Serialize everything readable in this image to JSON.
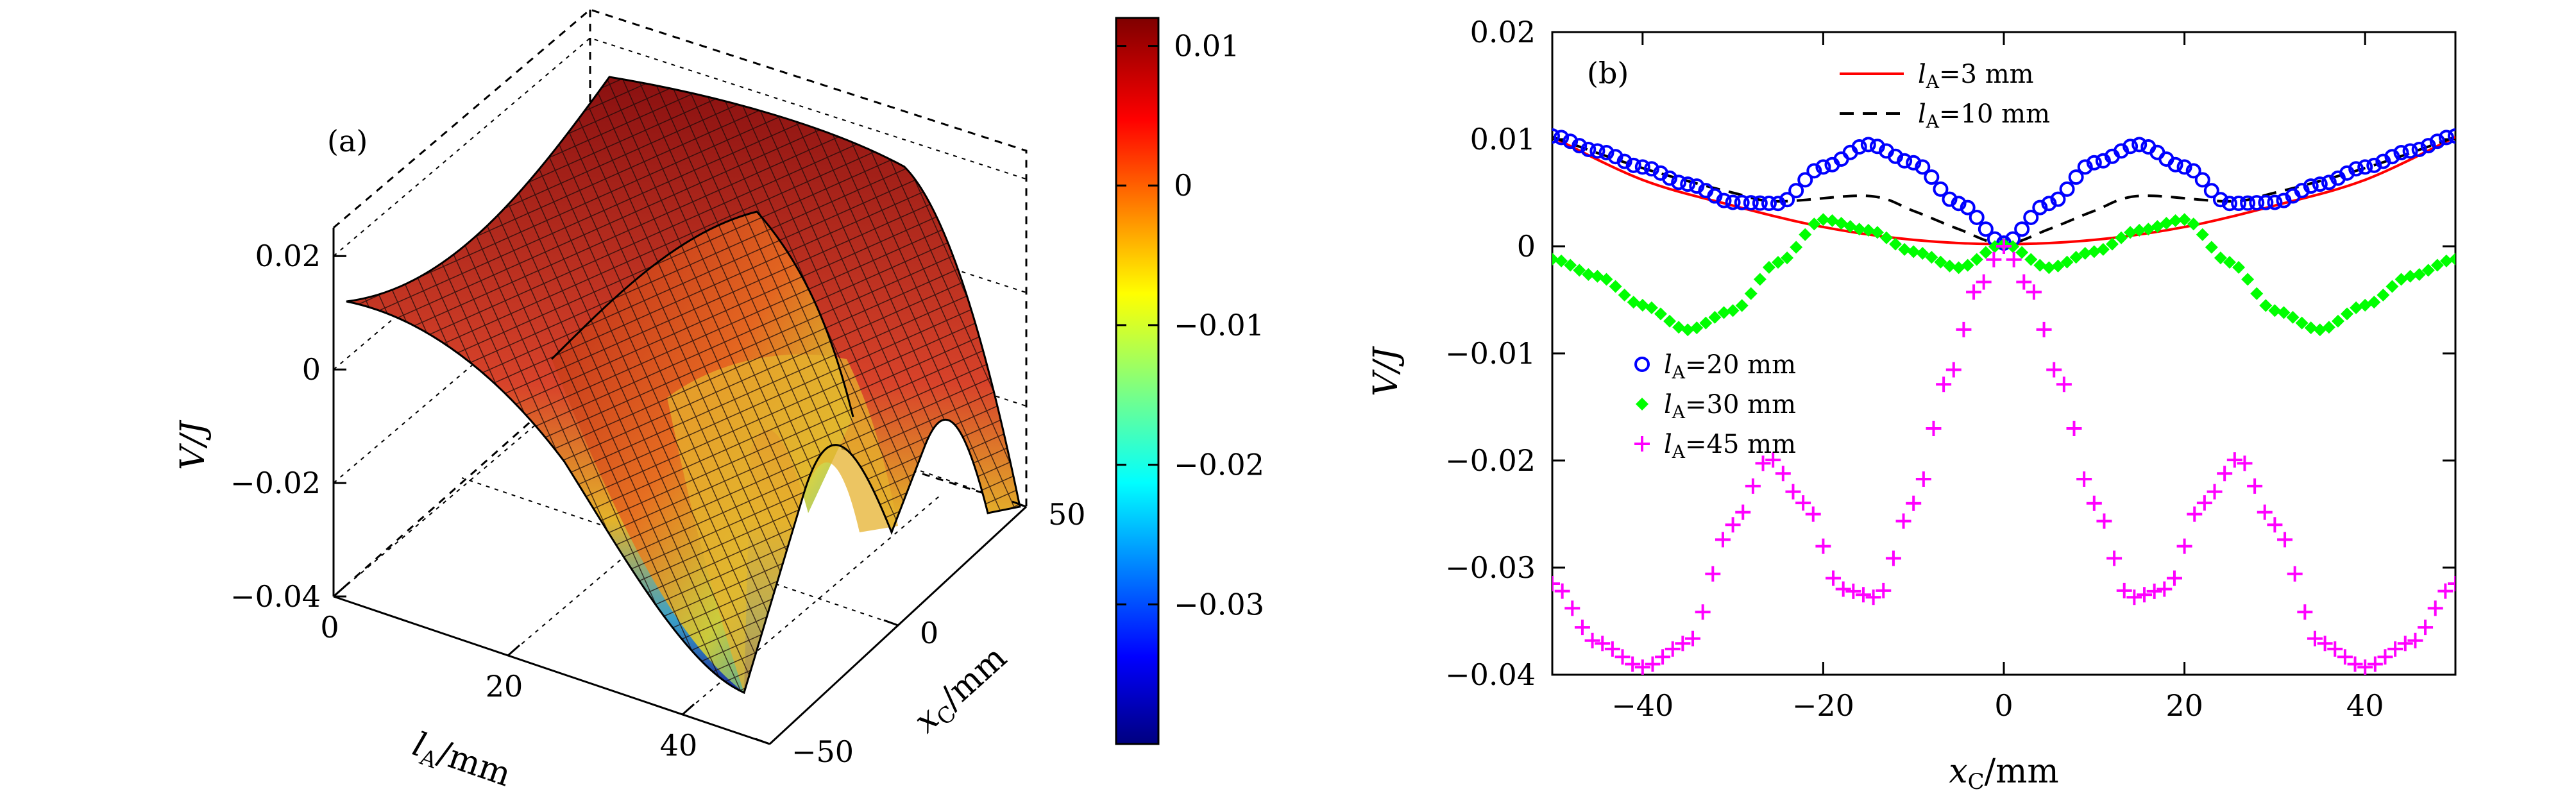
{
  "chart_data": [
    {
      "panel": "(a)",
      "type": "surface3d",
      "ylabel": "V/J",
      "xlabel_l": "l",
      "xlabel_sub": "A",
      "xlabel_unit": "/mm",
      "depth_l": "x",
      "depth_sub": "C",
      "depth_unit": "/mm",
      "la_range": [
        0,
        50
      ],
      "la_ticks": [
        "0",
        "20",
        "40"
      ],
      "xc_range": [
        -50,
        50
      ],
      "xc_ticks": [
        "50",
        "0",
        "−50"
      ],
      "v_range": [
        -0.04,
        0.025
      ],
      "v_ticks": [
        "0.02",
        "0",
        "−0.02",
        "−0.04"
      ],
      "colorbar": {
        "range": [
          -0.04,
          0.012
        ],
        "ticks": [
          "0.01",
          "0",
          "−0.01",
          "−0.02",
          "−0.03"
        ],
        "colormap": "jet"
      }
    },
    {
      "panel": "(b)",
      "type": "scatter",
      "xlabel_l": "x",
      "xlabel_sub": "C",
      "xlabel_unit": "/mm",
      "ylabel": "V/J",
      "xlim": [
        -50,
        50
      ],
      "ylim": [
        -0.04,
        0.02
      ],
      "xticks": [
        "−40",
        "−20",
        "0",
        "20",
        "40"
      ],
      "yticks": [
        "0.02",
        "0.01",
        "0",
        "−0.01",
        "−0.02",
        "−0.03",
        "−0.04"
      ],
      "series": [
        {
          "name": "l",
          "sub": "A",
          "eq": "=3 mm",
          "style": "line",
          "color": "#ff0000",
          "x": [
            -50,
            -40,
            -30,
            -20,
            -10,
            0,
            10,
            20,
            30,
            40,
            50
          ],
          "y": [
            0.0102,
            0.0062,
            0.0038,
            0.0018,
            0.0006,
            0.0002,
            0.0006,
            0.0018,
            0.0038,
            0.0062,
            0.0102
          ]
        },
        {
          "name": "l",
          "sub": "A",
          "eq": "=10 mm",
          "style": "dash",
          "color": "#000000",
          "x": [
            -50,
            -40,
            -30,
            -25,
            -15,
            -10,
            -5,
            0,
            5,
            10,
            15,
            25,
            30,
            40,
            50
          ],
          "y": [
            0.0102,
            0.0073,
            0.005,
            0.0042,
            0.0047,
            0.0033,
            0.0016,
            0.0002,
            0.0016,
            0.0033,
            0.0047,
            0.0042,
            0.005,
            0.0073,
            0.0102
          ]
        },
        {
          "name": "l",
          "sub": "A",
          "eq": "=20 mm",
          "style": "circle",
          "color": "#0000ff",
          "x": [
            -50,
            -45,
            -40,
            -35,
            -30,
            -25,
            -20,
            -15,
            -10,
            -5,
            0,
            5,
            10,
            15,
            20,
            25,
            30,
            35,
            40,
            45,
            50
          ],
          "y": [
            0.0103,
            0.0089,
            0.0074,
            0.0058,
            0.0041,
            0.004,
            0.0074,
            0.0095,
            0.0078,
            0.004,
            0.0003,
            0.004,
            0.0078,
            0.0095,
            0.0074,
            0.004,
            0.0041,
            0.0058,
            0.0074,
            0.0089,
            0.0103
          ]
        },
        {
          "name": "l",
          "sub": "A",
          "eq": "=30 mm",
          "style": "diamond",
          "color": "#00ff00",
          "x": [
            -50,
            -45,
            -40,
            -35,
            -30,
            -25,
            -20,
            -15,
            -10,
            -5,
            0,
            5,
            10,
            15,
            20,
            25,
            30,
            35,
            40,
            45,
            50
          ],
          "y": [
            -0.0012,
            -0.0028,
            -0.0055,
            -0.0078,
            -0.006,
            -0.0015,
            0.0025,
            0.0015,
            -0.0005,
            -0.002,
            0.0002,
            -0.002,
            -0.0005,
            0.0015,
            0.0025,
            -0.0015,
            -0.006,
            -0.0078,
            -0.0055,
            -0.0028,
            -0.0012
          ]
        },
        {
          "name": "l",
          "sub": "A",
          "eq": "=45 mm",
          "style": "plus",
          "color": "#ff00ff",
          "x": [
            -50,
            -45,
            -40,
            -35,
            -30,
            -26,
            -22,
            -18,
            -14,
            -10,
            -6,
            -3,
            0,
            3,
            6,
            10,
            14,
            18,
            22,
            26,
            30,
            35,
            40,
            45,
            50
          ],
          "y": [
            -0.0315,
            -0.037,
            -0.0393,
            -0.037,
            -0.026,
            -0.0198,
            -0.024,
            -0.032,
            -0.0328,
            -0.024,
            -0.012,
            -0.004,
            0.0,
            -0.004,
            -0.012,
            -0.024,
            -0.0328,
            -0.032,
            -0.024,
            -0.0198,
            -0.026,
            -0.037,
            -0.0393,
            -0.037,
            -0.0315
          ]
        }
      ]
    }
  ]
}
